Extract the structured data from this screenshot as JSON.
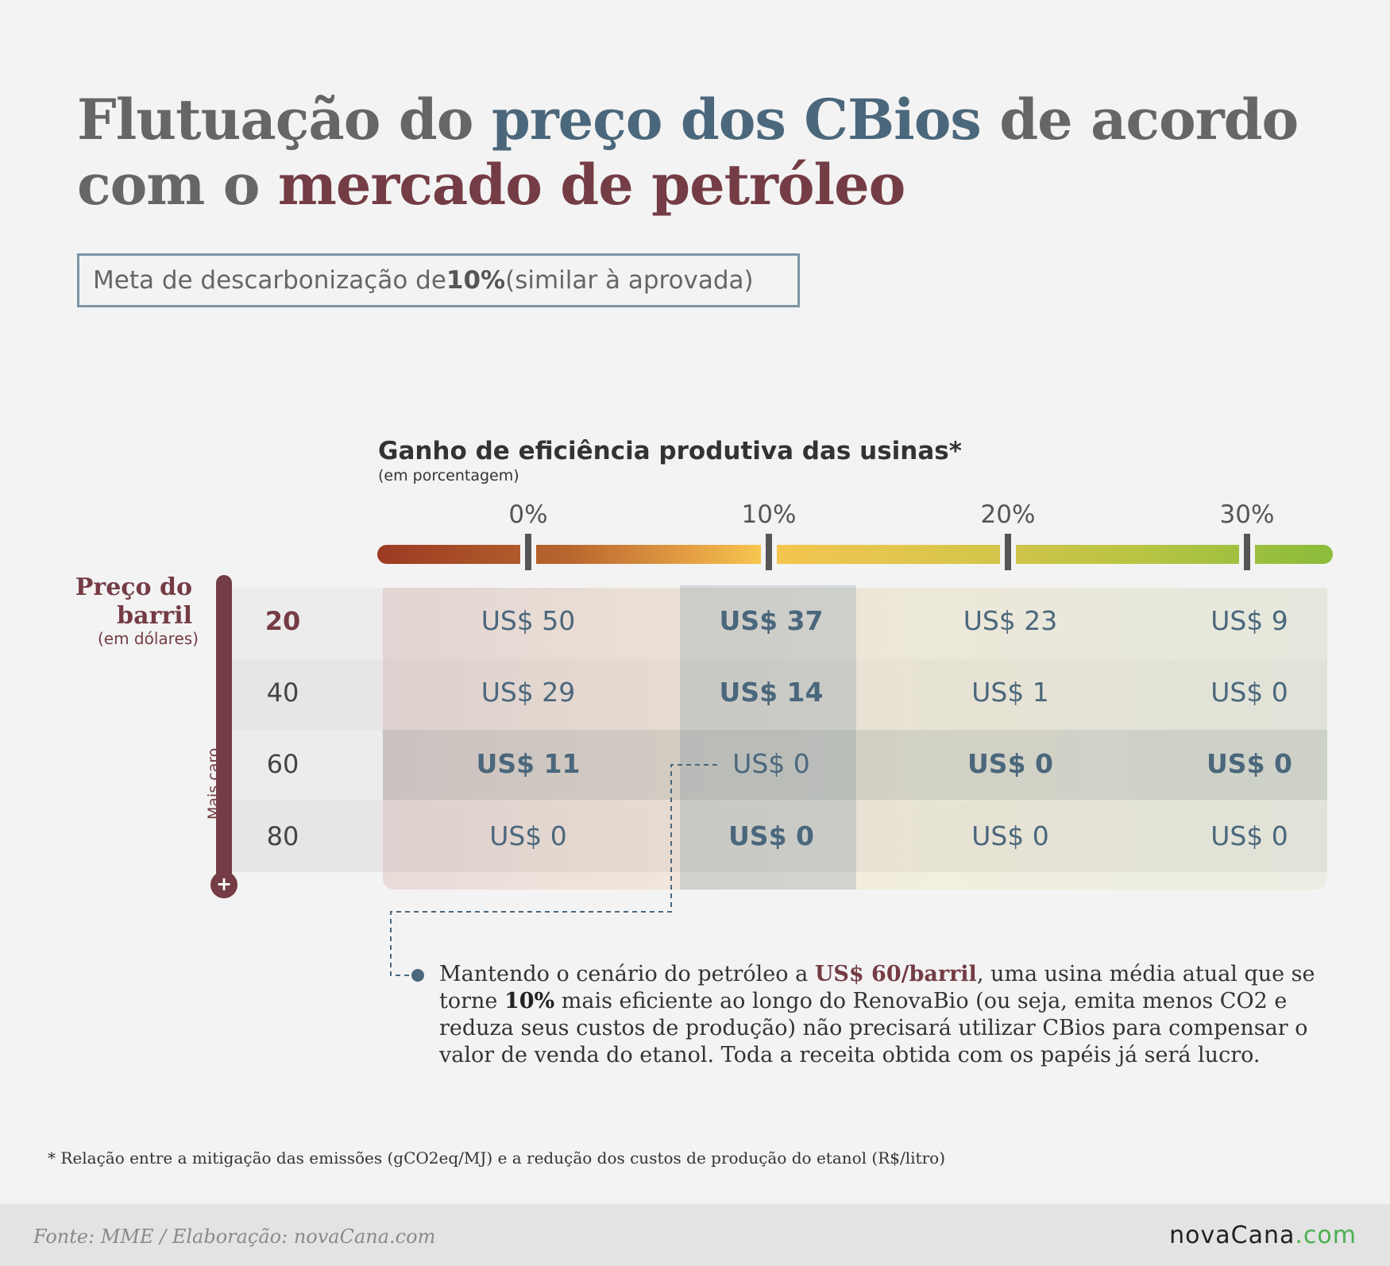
{
  "title": {
    "part1": "Flutuação do ",
    "part2": "preço dos CBios",
    "part3": " de acordo",
    "part4": "com o ",
    "part5": "mercado de petróleo"
  },
  "subtitle": {
    "pre": "Meta de descarbonização de ",
    "bold": "10%",
    "post": " (similar à aprovada)"
  },
  "colors": {
    "blue": "#4b677c",
    "red": "#743c44",
    "gray": "#666666",
    "logo_green": "#4caf50"
  },
  "chart_data": {
    "type": "table",
    "title": "Ganho de eficiência produtiva das usinas*",
    "xlabel": "Ganho de eficiência produtiva das usinas*",
    "x_unit": "(em porcentagem)",
    "ylabel": "Preço do barril",
    "y_unit": "(em dólares)",
    "y_scale_note": "Mais caro",
    "columns": [
      "0%",
      "10%",
      "20%",
      "30%"
    ],
    "rows": [
      "20",
      "40",
      "60",
      "80"
    ],
    "cells": [
      [
        "US$ 50",
        "US$ 37",
        "US$ 23",
        "US$ 9"
      ],
      [
        "US$ 29",
        "US$ 14",
        "US$ 1",
        "US$ 0"
      ],
      [
        "US$ 11",
        "US$ 0",
        "US$ 0",
        "US$ 0"
      ],
      [
        "US$ 0",
        "US$ 0",
        "US$ 0",
        "US$ 0"
      ]
    ],
    "values": [
      [
        50,
        37,
        23,
        9
      ],
      [
        29,
        14,
        1,
        0
      ],
      [
        11,
        0,
        0,
        0
      ],
      [
        0,
        0,
        0,
        0
      ]
    ],
    "highlight_column": "10%",
    "highlight_row": "60"
  },
  "note": {
    "p1": "Mantendo o cenário do petróleo a ",
    "p2": "US$ 60/barril",
    "p3": ", uma usina média atual que se torne ",
    "p4": "10%",
    "p5": " mais eficiente ao longo do RenovaBio (ou seja, emita menos CO2 e reduza seus custos de produção) não precisará utilizar CBios para compensar o valor de venda do etanol. Toda a receita obtida com os papéis já será lucro."
  },
  "footnote": "* Relação entre a mitigação das emissões (gCO2eq/MJ) e a redução dos custos de produção do etanol (R$/litro)",
  "footer": {
    "source": "Fonte: MME / Elaboração: novaCana.com",
    "logo_main": "novaCana",
    "logo_suffix": ".com"
  },
  "thermo_plus": "+"
}
